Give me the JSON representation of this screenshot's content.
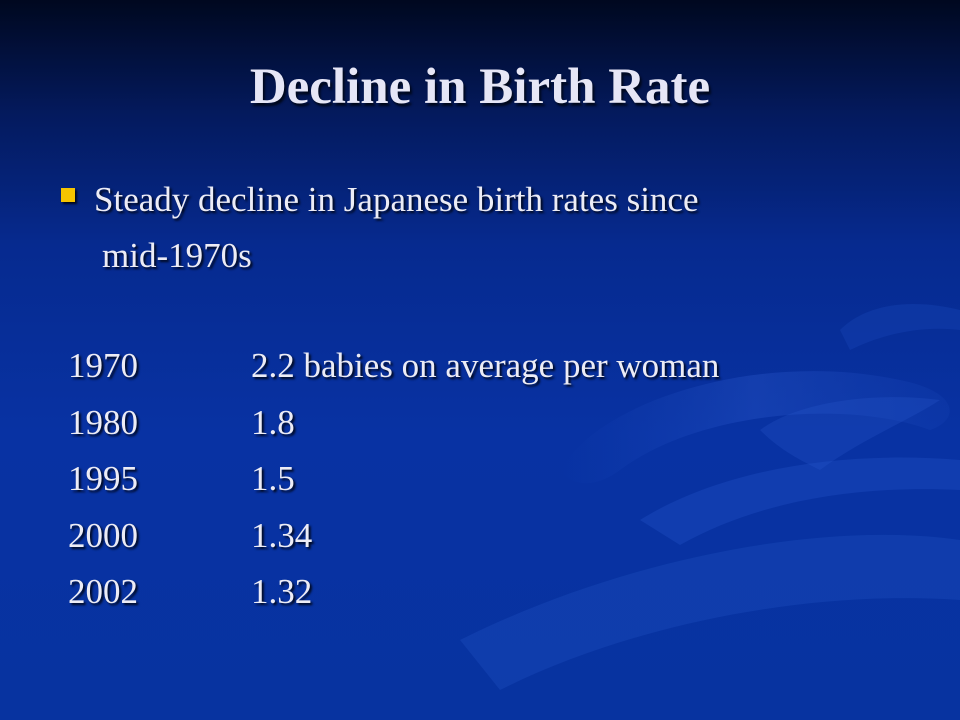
{
  "slide": {
    "title": "Decline in Birth Rate",
    "bullet": {
      "line1": "Steady decline in Japanese birth rates since",
      "line2": "mid-1970s"
    },
    "rows": [
      {
        "year": "1970",
        "value": "2.2 babies on average per woman"
      },
      {
        "year": "1980",
        "value": "1.8"
      },
      {
        "year": "1995",
        "value": "1.5"
      },
      {
        "year": "2000",
        "value": "1.34"
      },
      {
        "year": "2002",
        "value": "1.32"
      }
    ]
  },
  "colors": {
    "background": "#0733a0",
    "text": "#ececf6",
    "bullet": "#f6c400"
  }
}
